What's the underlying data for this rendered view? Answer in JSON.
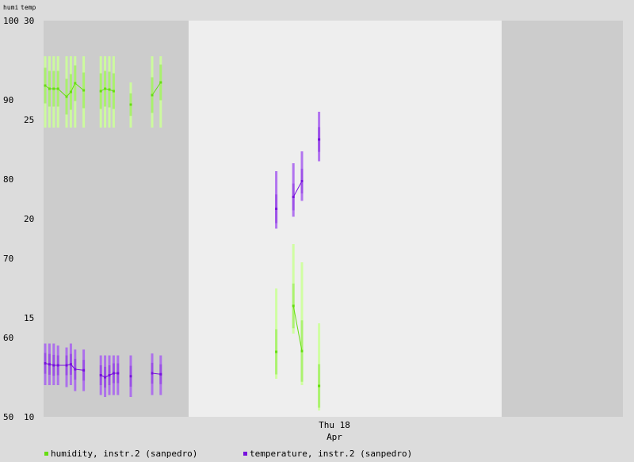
{
  "chart_data": {
    "type": "line",
    "axis_titles": {
      "left": "humi",
      "right": "temp"
    },
    "x_tick": {
      "line1": "Thu 18",
      "line2": "Apr"
    },
    "humidity_axis": {
      "ticks": [
        "100",
        "90",
        "80",
        "70",
        "60",
        "50"
      ],
      "ylim": [
        50,
        100
      ]
    },
    "temperature_axis": {
      "ticks": [
        "30",
        "25",
        "20",
        "15",
        "10"
      ],
      "ylim": [
        10,
        30
      ]
    },
    "series": [
      {
        "name": "humidity, instr.2 (sanpedro)",
        "color": "#66dd11",
        "range_color": "#ccff99",
        "axis": "humidity",
        "points": [
          {
            "x": 0,
            "y": 91.8,
            "lo": 86.5,
            "hi": 95.5
          },
          {
            "x": 1,
            "y": 91.4,
            "lo": 86.5,
            "hi": 95.5
          },
          {
            "x": 2,
            "y": 91.4,
            "lo": 86.5,
            "hi": 95.5
          },
          {
            "x": 3,
            "y": 91.4,
            "lo": 86.5,
            "hi": 95.5
          },
          {
            "x": 5,
            "y": 90.4,
            "lo": 86.5,
            "hi": 95.5
          },
          {
            "x": 6,
            "y": 91.0,
            "lo": 86.5,
            "hi": 95.5
          },
          {
            "x": 7,
            "y": 92.1,
            "lo": 86.5,
            "hi": 95.5
          },
          {
            "x": 9,
            "y": 91.2,
            "lo": 86.5,
            "hi": 95.5
          },
          {
            "x": 13,
            "y": 91.1,
            "lo": 86.5,
            "hi": 95.5
          },
          {
            "x": 14,
            "y": 91.4,
            "lo": 86.5,
            "hi": 95.5
          },
          {
            "x": 15,
            "y": 91.3,
            "lo": 86.5,
            "hi": 95.5
          },
          {
            "x": 16,
            "y": 91.1,
            "lo": 86.5,
            "hi": 95.5
          },
          {
            "x": 20,
            "y": 89.4,
            "lo": 86.5,
            "hi": 92.2
          },
          {
            "x": 25,
            "y": 90.6,
            "lo": 86.5,
            "hi": 95.5
          },
          {
            "x": 27,
            "y": 92.2,
            "lo": 86.5,
            "hi": 95.5
          },
          {
            "x": 54,
            "y": 58.2,
            "lo": 54.8,
            "hi": 66.2
          },
          {
            "x": 58,
            "y": 64.0,
            "lo": 60.5,
            "hi": 71.8
          },
          {
            "x": 60,
            "y": 58.3,
            "lo": 54.0,
            "hi": 69.5
          },
          {
            "x": 64,
            "y": 53.9,
            "lo": 50.8,
            "hi": 61.8
          }
        ]
      },
      {
        "name": "temperature, instr.2 (sanpedro)",
        "color": "#7711dd",
        "range_color": "#aa66ee",
        "axis": "temperature",
        "points": [
          {
            "x": 0,
            "y": 12.7,
            "lo": 11.6,
            "hi": 13.7
          },
          {
            "x": 1,
            "y": 12.65,
            "lo": 11.6,
            "hi": 13.7
          },
          {
            "x": 2,
            "y": 12.6,
            "lo": 11.6,
            "hi": 13.7
          },
          {
            "x": 3,
            "y": 12.6,
            "lo": 11.6,
            "hi": 13.6
          },
          {
            "x": 5,
            "y": 12.6,
            "lo": 11.5,
            "hi": 13.5
          },
          {
            "x": 6,
            "y": 12.65,
            "lo": 11.6,
            "hi": 13.7
          },
          {
            "x": 7,
            "y": 12.4,
            "lo": 11.3,
            "hi": 13.4
          },
          {
            "x": 9,
            "y": 12.35,
            "lo": 11.3,
            "hi": 13.4
          },
          {
            "x": 13,
            "y": 12.1,
            "lo": 11.1,
            "hi": 13.1
          },
          {
            "x": 14,
            "y": 12.0,
            "lo": 11.0,
            "hi": 13.1
          },
          {
            "x": 15,
            "y": 12.1,
            "lo": 11.1,
            "hi": 13.1
          },
          {
            "x": 16,
            "y": 12.2,
            "lo": 11.1,
            "hi": 13.1
          },
          {
            "x": 17,
            "y": 12.2,
            "lo": 11.1,
            "hi": 13.1
          },
          {
            "x": 20,
            "y": 12.05,
            "lo": 11.0,
            "hi": 13.1
          },
          {
            "x": 25,
            "y": 12.2,
            "lo": 11.1,
            "hi": 13.2
          },
          {
            "x": 27,
            "y": 12.15,
            "lo": 11.1,
            "hi": 13.1
          },
          {
            "x": 54,
            "y": 20.5,
            "lo": 19.5,
            "hi": 22.4
          },
          {
            "x": 58,
            "y": 21.1,
            "lo": 20.1,
            "hi": 22.8
          },
          {
            "x": 60,
            "y": 21.9,
            "lo": 20.9,
            "hi": 23.4
          },
          {
            "x": 64,
            "y": 24.0,
            "lo": 22.9,
            "hi": 25.4
          }
        ]
      }
    ],
    "legend_position": "bottom-left",
    "grid": false
  }
}
